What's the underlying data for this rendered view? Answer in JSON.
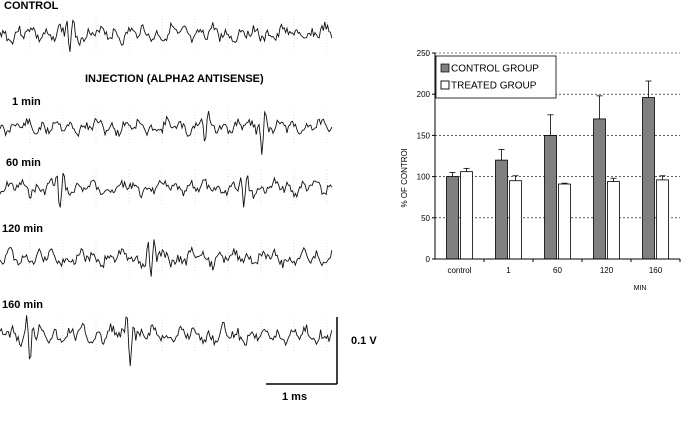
{
  "traces": {
    "labels": [
      "CONTROL",
      "INJECTION (ALPHA2 ANTISENSE)",
      "1 min",
      "60 min",
      "120 min",
      "160 min"
    ],
    "scale_bar_voltage": "0.1 V",
    "scale_bar_time": "1 ms"
  },
  "chart_data": {
    "type": "bar",
    "categories": [
      "control",
      "1",
      "60",
      "120",
      "160"
    ],
    "x_unit": "MIN",
    "ylabel": "% OF CONTROl",
    "ylim": [
      0,
      250
    ],
    "yticks": [
      0,
      50,
      100,
      150,
      200,
      250
    ],
    "grid": true,
    "legend_position": "top-left",
    "series": [
      {
        "name": "CONTROL GROUP",
        "color": "#808080",
        "values": [
          100,
          120,
          150,
          170,
          196
        ],
        "errors": [
          5,
          13,
          25,
          28,
          20
        ]
      },
      {
        "name": "TREATED GROUP",
        "color": "#ffffff",
        "values": [
          106,
          95,
          91,
          94,
          96
        ],
        "errors": [
          4,
          6,
          1,
          4,
          5
        ]
      }
    ]
  }
}
